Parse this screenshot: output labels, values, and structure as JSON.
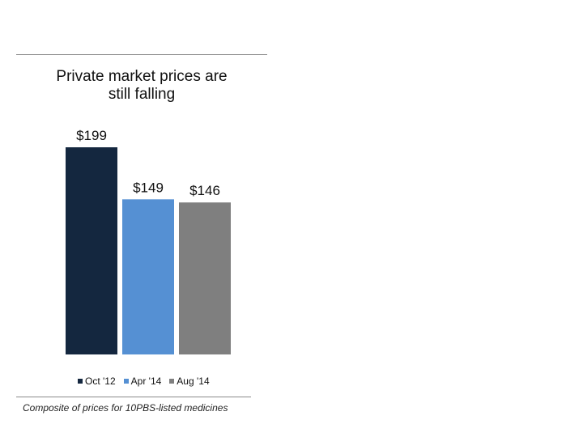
{
  "chart_data": {
    "type": "bar",
    "title_lines": [
      "Private market prices are",
      "still falling"
    ],
    "categories": [
      "Oct '12",
      "Apr '14",
      "Aug '14"
    ],
    "values": [
      199,
      149,
      146
    ],
    "data_labels": [
      "$199",
      "$149",
      "$146"
    ],
    "colors": [
      "#14273f",
      "#5590d3",
      "#7f7f7f"
    ],
    "legend_position": "bottom",
    "grid": false,
    "ylim": [
      0,
      199
    ]
  },
  "footnote": "Composite of prices for 10PBS-listed medicines"
}
